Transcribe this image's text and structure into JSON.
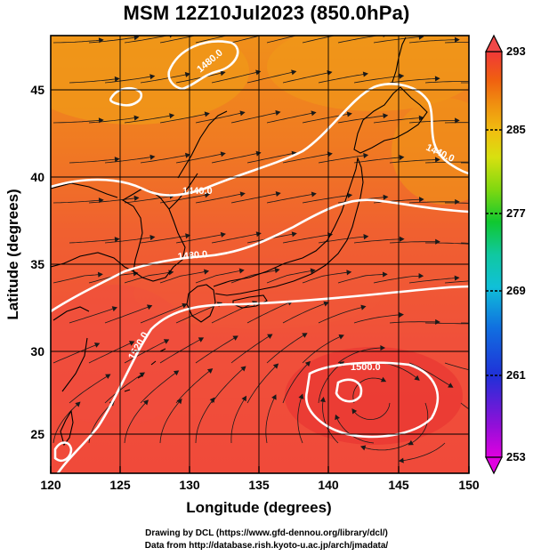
{
  "title": "MSM 12Z10Jul2023 (850.0hPa)",
  "xaxis": {
    "label": "Longitude (degrees)",
    "ticks": [
      "120",
      "125",
      "130",
      "135",
      "140",
      "145",
      "150"
    ],
    "range": [
      120,
      150
    ]
  },
  "yaxis": {
    "label": "Latitude  (degrees)",
    "ticks": [
      "25",
      "30",
      "35",
      "40",
      "45"
    ],
    "range": [
      22.4,
      47.6
    ]
  },
  "colorbar": {
    "ticks": [
      "293",
      "285",
      "277",
      "269",
      "261",
      "253"
    ],
    "range": [
      253,
      293
    ],
    "colors": [
      "#e000e0",
      "#8010d8",
      "#2030d8",
      "#1070e0",
      "#10c0d8",
      "#10c8a0",
      "#10c830",
      "#80d810",
      "#d8e010",
      "#f0c010",
      "#f09010",
      "#f06010",
      "#f03030",
      "#f04848"
    ]
  },
  "contours": [
    {
      "label": "1440.0",
      "line_color": "#ffffff"
    },
    {
      "label": "1440.0",
      "line_color": "#ffffff"
    },
    {
      "label": "1480.0",
      "line_color": "#ffffff"
    },
    {
      "label": "1480.0",
      "line_color": "#ffffff"
    },
    {
      "label": "1520.0",
      "line_color": "#ffffff"
    },
    {
      "label": "1500.0",
      "line_color": "#ffffff"
    }
  ],
  "background_colors": {
    "north_warm": "#f08a1a",
    "mid": "#f06a28",
    "south": "#f04a3a",
    "low_center": "#e83030"
  },
  "credits": {
    "line1": "Drawing by DCL (https://www.gfd-dennou.org/library/dcl/)",
    "line2": "Data from http://database.rish.kyoto-u.ac.jp/arch/jmadata/"
  }
}
